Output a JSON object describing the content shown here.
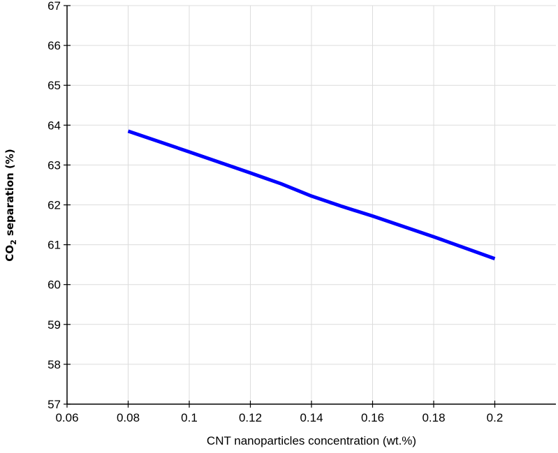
{
  "chart_data": {
    "type": "line",
    "title": "",
    "xlabel": "CNT nanoparticles concentration  (wt.%)",
    "ylabel": {
      "prefix": "CO",
      "subscript": "2",
      "suffix": " separation (%)"
    },
    "xlim": [
      0.06,
      0.22
    ],
    "ylim": [
      57,
      67
    ],
    "x_ticks": [
      0.06,
      0.08,
      0.1,
      0.12,
      0.14,
      0.16,
      0.18,
      0.2
    ],
    "x_tick_labels": [
      "0.06",
      "0.08",
      "0.1",
      "0.12",
      "0.14",
      "0.16",
      "0.18",
      "0.2"
    ],
    "y_ticks": [
      57,
      58,
      59,
      60,
      61,
      62,
      63,
      64,
      65,
      66,
      67
    ],
    "y_tick_labels": [
      "57",
      "58",
      "59",
      "60",
      "61",
      "62",
      "63",
      "64",
      "65",
      "66",
      "67"
    ],
    "grid": true,
    "legend": "none",
    "series": [
      {
        "color": "#0000ff",
        "x": [
          0.08,
          0.1,
          0.12,
          0.13,
          0.14,
          0.15,
          0.16,
          0.18,
          0.2
        ],
        "y": [
          63.85,
          63.33,
          62.8,
          62.53,
          62.22,
          61.96,
          61.72,
          61.2,
          60.65
        ]
      }
    ]
  }
}
